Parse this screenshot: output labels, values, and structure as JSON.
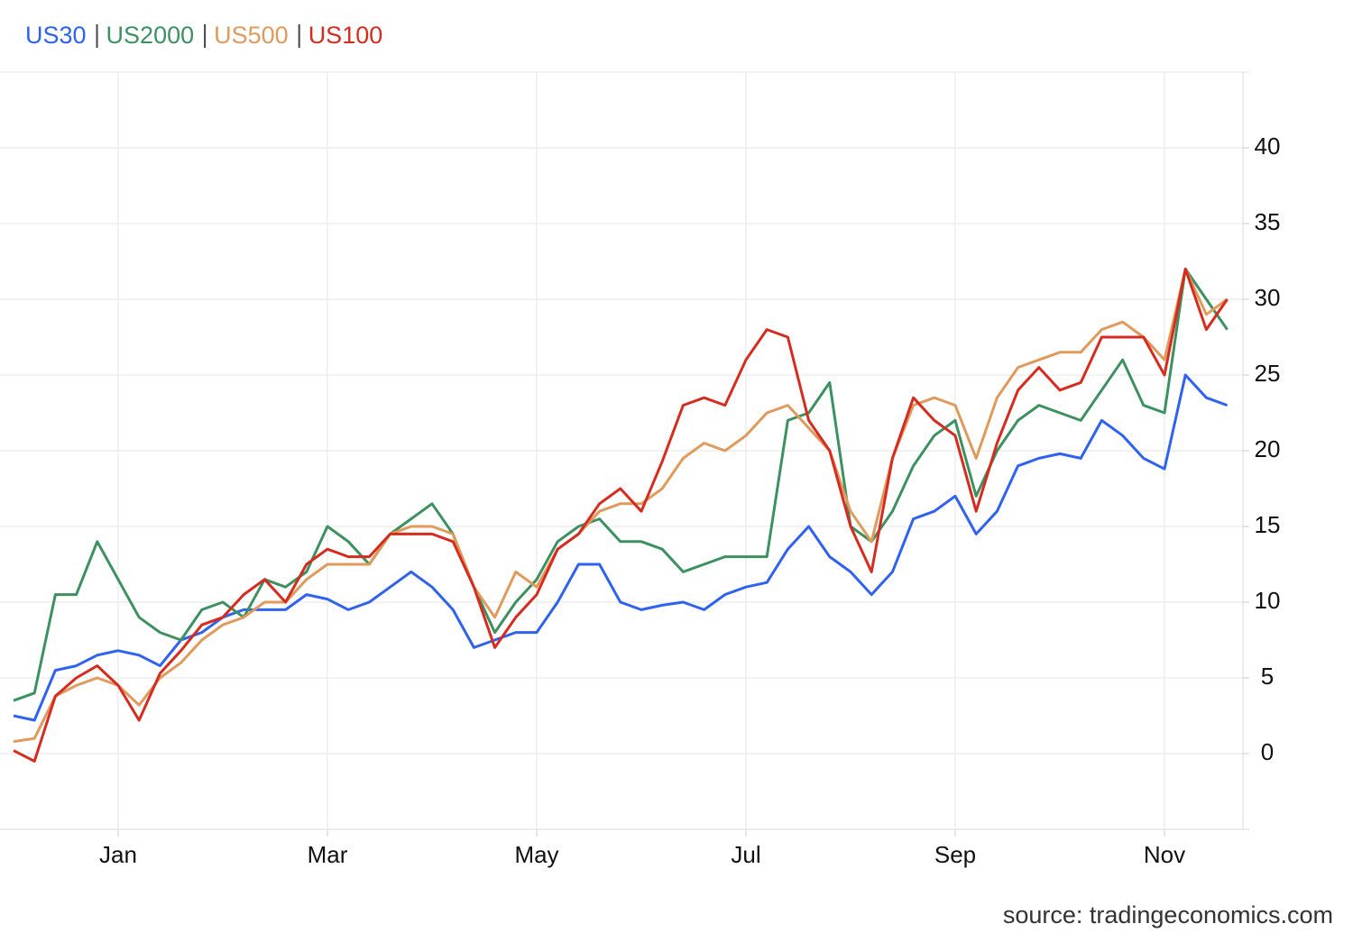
{
  "chart_data": {
    "type": "line",
    "categories": [
      null,
      null,
      null,
      null,
      null,
      "Jan",
      null,
      null,
      null,
      null,
      null,
      null,
      null,
      null,
      null,
      "Mar",
      null,
      null,
      null,
      null,
      null,
      null,
      null,
      null,
      null,
      "May",
      null,
      null,
      null,
      null,
      null,
      null,
      null,
      null,
      null,
      "Jul",
      null,
      null,
      null,
      null,
      null,
      null,
      null,
      null,
      null,
      "Sep",
      null,
      null,
      null,
      null,
      null,
      null,
      null,
      null,
      null,
      "Nov",
      null,
      null,
      null
    ],
    "series": [
      {
        "name": "US30",
        "color": "#2f62ef",
        "values": [
          2.5,
          2.2,
          5.5,
          5.8,
          6.5,
          6.8,
          6.5,
          5.8,
          7.5,
          8,
          9,
          9.5,
          9.5,
          9.5,
          10.5,
          10.2,
          9.5,
          10,
          11,
          12,
          11,
          9.5,
          7,
          7.5,
          8,
          8,
          10,
          12.5,
          12.5,
          10,
          9.5,
          9.8,
          10,
          9.5,
          10.5,
          11,
          11.3,
          13.5,
          15,
          13,
          12,
          10.5,
          12,
          15.5,
          16,
          17,
          14.5,
          16,
          19,
          19.5,
          19.8,
          19.5,
          22,
          21,
          19.5,
          18.8,
          25,
          23.5,
          23
        ]
      },
      {
        "name": "US2000",
        "color": "#3d9160",
        "values": [
          3.5,
          4,
          10.5,
          10.5,
          14,
          11.5,
          9,
          8,
          7.5,
          9.5,
          10,
          9,
          11.5,
          11,
          12,
          15,
          14,
          12.5,
          14.5,
          15.5,
          16.5,
          14.5,
          11,
          8,
          10,
          11.5,
          14,
          15,
          15.5,
          14,
          14,
          13.5,
          12,
          12.5,
          13,
          13,
          13,
          22,
          22.5,
          24.5,
          15,
          14,
          16,
          19,
          21,
          22,
          17,
          20,
          22,
          23,
          22.5,
          22,
          24,
          26,
          23,
          22.5,
          32,
          30,
          28
        ]
      },
      {
        "name": "US500",
        "color": "#e09a5c",
        "values": [
          0.8,
          1,
          3.8,
          4.5,
          5,
          4.5,
          3.2,
          5,
          6,
          7.5,
          8.5,
          9,
          10,
          10,
          11.5,
          12.5,
          12.5,
          12.5,
          14.5,
          15,
          15,
          14.5,
          11,
          9,
          12,
          11,
          13.5,
          14.5,
          16,
          16.5,
          16.5,
          17.5,
          19.5,
          20.5,
          20,
          21,
          22.5,
          23,
          21.5,
          20,
          16,
          14,
          19.5,
          23,
          23.5,
          23,
          19.5,
          23.5,
          25.5,
          26,
          26.5,
          26.5,
          28,
          28.5,
          27.5,
          26,
          32,
          29,
          30
        ]
      },
      {
        "name": "US100",
        "color": "#d62b1f",
        "values": [
          0.2,
          -0.5,
          3.8,
          5,
          5.8,
          4.5,
          2.2,
          5.3,
          6.8,
          8.5,
          9,
          10.5,
          11.5,
          10,
          12.5,
          13.5,
          13,
          13,
          14.5,
          14.5,
          14.5,
          14,
          11,
          7,
          9,
          10.5,
          13.5,
          14.5,
          16.5,
          17.5,
          16,
          19.3,
          23,
          23.5,
          23,
          26,
          28,
          27.5,
          22,
          20,
          15,
          12,
          19.5,
          23.5,
          22,
          21,
          16,
          20.5,
          24,
          25.5,
          24,
          24.5,
          27.5,
          27.5,
          27.5,
          25,
          32,
          28,
          30
        ]
      }
    ],
    "ylim": [
      -5,
      45
    ],
    "yticks": [
      0,
      5,
      10,
      15,
      20,
      25,
      30,
      35,
      40
    ],
    "grid": true,
    "source": "source: tradingeconomics.com"
  }
}
